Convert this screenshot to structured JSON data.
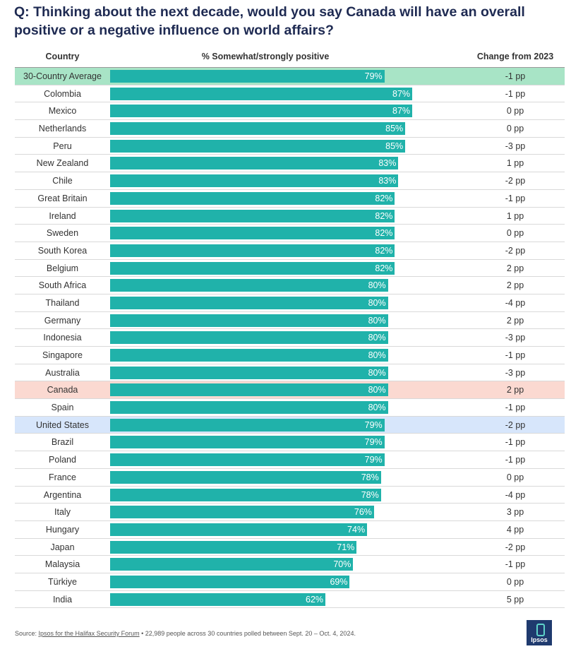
{
  "title": "Q: Thinking about the next decade, would you say Canada will have an overall positive or a negative influence on world affairs?",
  "headers": {
    "country": "Country",
    "pct": "% Somewhat/strongly positive",
    "change": "Change from 2023"
  },
  "colors": {
    "bar": "#20b2aa",
    "highlight_average": "#a8e4c6",
    "highlight_canada": "#fbd9d1",
    "highlight_us": "#d7e6fb"
  },
  "chart_data": {
    "type": "bar",
    "orientation": "horizontal",
    "title": "Q: Thinking about the next decade, would you say Canada will have an overall positive or a negative influence on world affairs?",
    "xlabel": "% Somewhat/strongly positive",
    "ylabel": "Country",
    "xlim": [
      0,
      100
    ],
    "rows": [
      {
        "country": "30-Country Average",
        "value": 79,
        "label": "79%",
        "change": "-1 pp",
        "highlight": "green"
      },
      {
        "country": "Colombia",
        "value": 87,
        "label": "87%",
        "change": "-1 pp",
        "highlight": ""
      },
      {
        "country": "Mexico",
        "value": 87,
        "label": "87%",
        "change": "0 pp",
        "highlight": ""
      },
      {
        "country": "Netherlands",
        "value": 85,
        "label": "85%",
        "change": "0 pp",
        "highlight": ""
      },
      {
        "country": "Peru",
        "value": 85,
        "label": "85%",
        "change": "-3 pp",
        "highlight": ""
      },
      {
        "country": "New Zealand",
        "value": 83,
        "label": "83%",
        "change": "1 pp",
        "highlight": ""
      },
      {
        "country": "Chile",
        "value": 83,
        "label": "83%",
        "change": "-2 pp",
        "highlight": ""
      },
      {
        "country": "Great Britain",
        "value": 82,
        "label": "82%",
        "change": "-1 pp",
        "highlight": ""
      },
      {
        "country": "Ireland",
        "value": 82,
        "label": "82%",
        "change": "1 pp",
        "highlight": ""
      },
      {
        "country": "Sweden",
        "value": 82,
        "label": "82%",
        "change": "0 pp",
        "highlight": ""
      },
      {
        "country": "South Korea",
        "value": 82,
        "label": "82%",
        "change": "-2 pp",
        "highlight": ""
      },
      {
        "country": "Belgium",
        "value": 82,
        "label": "82%",
        "change": "2 pp",
        "highlight": ""
      },
      {
        "country": "South Africa",
        "value": 80,
        "label": "80%",
        "change": "2 pp",
        "highlight": ""
      },
      {
        "country": "Thailand",
        "value": 80,
        "label": "80%",
        "change": "-4 pp",
        "highlight": ""
      },
      {
        "country": "Germany",
        "value": 80,
        "label": "80%",
        "change": "2 pp",
        "highlight": ""
      },
      {
        "country": "Indonesia",
        "value": 80,
        "label": "80%",
        "change": "-3 pp",
        "highlight": ""
      },
      {
        "country": "Singapore",
        "value": 80,
        "label": "80%",
        "change": "-1 pp",
        "highlight": ""
      },
      {
        "country": "Australia",
        "value": 80,
        "label": "80%",
        "change": "-3 pp",
        "highlight": ""
      },
      {
        "country": "Canada",
        "value": 80,
        "label": "80%",
        "change": "2 pp",
        "highlight": "pink"
      },
      {
        "country": "Spain",
        "value": 80,
        "label": "80%",
        "change": "-1 pp",
        "highlight": ""
      },
      {
        "country": "United States",
        "value": 79,
        "label": "79%",
        "change": "-2 pp",
        "highlight": "blue"
      },
      {
        "country": "Brazil",
        "value": 79,
        "label": "79%",
        "change": "-1 pp",
        "highlight": ""
      },
      {
        "country": "Poland",
        "value": 79,
        "label": "79%",
        "change": "-1 pp",
        "highlight": ""
      },
      {
        "country": "France",
        "value": 78,
        "label": "78%",
        "change": "0 pp",
        "highlight": ""
      },
      {
        "country": "Argentina",
        "value": 78,
        "label": "78%",
        "change": "-4 pp",
        "highlight": ""
      },
      {
        "country": "Italy",
        "value": 76,
        "label": "76%",
        "change": "3 pp",
        "highlight": ""
      },
      {
        "country": "Hungary",
        "value": 74,
        "label": "74%",
        "change": "4 pp",
        "highlight": ""
      },
      {
        "country": "Japan",
        "value": 71,
        "label": "71%",
        "change": "-2 pp",
        "highlight": ""
      },
      {
        "country": "Malaysia",
        "value": 70,
        "label": "70%",
        "change": "-1 pp",
        "highlight": ""
      },
      {
        "country": "Türkiye",
        "value": 69,
        "label": "69%",
        "change": "0 pp",
        "highlight": ""
      },
      {
        "country": "India",
        "value": 62,
        "label": "62%",
        "change": "5 pp",
        "highlight": ""
      }
    ]
  },
  "footer": {
    "source_prefix": "Source: ",
    "source_link": "Ipsos for the Halifax Security Forum",
    "source_rest": " • 22,989 people across 30 countries polled between Sept. 20 – Oct. 4, 2024.",
    "logo_text": "Ipsos"
  }
}
